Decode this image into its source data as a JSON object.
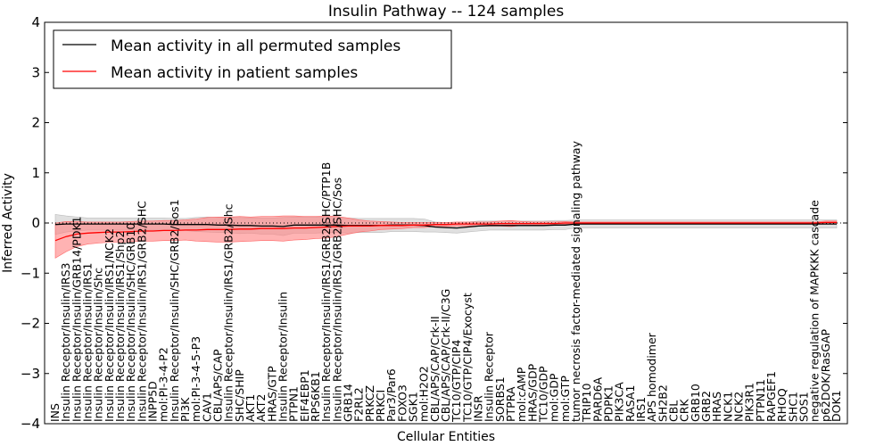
{
  "chart_data": {
    "type": "line",
    "title": "Insulin Pathway -- 124 samples",
    "xlabel": "Cellular Entities",
    "ylabel": "Inferred Activity",
    "ylim": [
      -4,
      4
    ],
    "yticks": [
      4,
      3,
      2,
      1,
      0,
      -1,
      -2,
      -3,
      -4
    ],
    "grid": false,
    "legend_position": "top-left",
    "categories": [
      "INS",
      "Insulin Receptor/Insulin/IRS3",
      "Insulin Receptor/Insulin/GRB14/PDK1",
      "Insulin Receptor/Insulin/IRS1",
      "Insulin Receptor/Insulin/Shc",
      "Insulin Receptor/Insulin/IRS1/NCK2",
      "Insulin Receptor/Insulin/IRS1/Shp2",
      "Insulin Receptor/Insulin/SHC/GRB10",
      "Insulin Receptor/Insulin/IRS1/GRB2/SHC",
      "INPP5D",
      "mol:PI-3-4-P2",
      "Insulin Receptor/Insulin/SHC/GRB2/Sos1",
      "PI3K",
      "mol:PI-3-4-5-P3",
      "CAV1",
      "CBL/APS/CAP",
      "Insulin Receptor/Insulin/IRS1/GRB2/Shc",
      "SHC/SHIP",
      "AKT1",
      "AKT2",
      "HRAS/GTP",
      "Insulin Receptor/Insulin",
      "PTPN1",
      "EIF4EBP1",
      "RPS6KB1",
      "Insulin Receptor/Insulin/IRS1/GRB2/SHC/PTP1B",
      "Insulin Receptor/Insulin/IRS1/GRB2/SHC/Sos",
      "GRB14",
      "F2RL2",
      "PRKCZ",
      "PRKCI",
      "Par3/Par6",
      "FOXO3",
      "SGK1",
      "mol:H2O2",
      "CBL/APS/CAP/Crk-II",
      "CBL/APS/CAP/Crk-II/C3G",
      "TC10/GTP/CIP4",
      "TC10/GTP/CIP4/Exocyst",
      "INSR",
      "Insulin Receptor",
      "SORBS1",
      "PTPRA",
      "mol:cAMP",
      "HRAS/GDP",
      "TC10/GDP",
      "mol:GDP",
      "mol:GTP",
      "tumor necrosis factor-mediated signaling pathway",
      "TRIP10",
      "PARD6A",
      "PDPK1",
      "PIK3CA",
      "RASA1",
      "IRS1",
      "APS homodimer",
      "SH2B2",
      "CBL",
      "CRK",
      "GRB10",
      "GRB2",
      "HRAS",
      "NCK1",
      "NCK2",
      "PIK3R1",
      "PTPN11",
      "RAPGEF1",
      "RHOQ",
      "SHC1",
      "SOS1",
      "negative regulation of MAPKKK cascade",
      "p62DOK/RasGAP",
      "DOK1"
    ],
    "series": [
      {
        "name": "Mean activity in all permuted samples",
        "color": "#000000",
        "values": [
          -0.03,
          -0.02,
          -0.02,
          -0.02,
          -0.02,
          -0.02,
          -0.02,
          -0.02,
          -0.02,
          -0.02,
          -0.02,
          -0.03,
          -0.03,
          -0.03,
          -0.03,
          -0.04,
          -0.04,
          -0.05,
          -0.05,
          -0.06,
          -0.06,
          -0.07,
          -0.04,
          -0.04,
          -0.04,
          -0.04,
          -0.04,
          -0.05,
          -0.05,
          -0.05,
          -0.05,
          -0.04,
          -0.04,
          -0.04,
          -0.05,
          -0.08,
          -0.09,
          -0.1,
          -0.08,
          -0.06,
          -0.05,
          -0.05,
          -0.05,
          -0.05,
          -0.05,
          -0.05,
          -0.04,
          -0.04,
          -0.02,
          -0.02,
          -0.02,
          -0.02,
          -0.02,
          -0.02,
          -0.02,
          -0.02,
          -0.02,
          -0.02,
          -0.02,
          -0.02,
          -0.02,
          -0.02,
          -0.02,
          -0.02,
          -0.02,
          -0.02,
          -0.02,
          -0.02,
          -0.02,
          -0.02,
          -0.02,
          -0.02,
          -0.02
        ],
        "band": [
          0.2,
          0.16,
          0.14,
          0.12,
          0.12,
          0.12,
          0.12,
          0.12,
          0.12,
          0.12,
          0.12,
          0.12,
          0.12,
          0.14,
          0.15,
          0.15,
          0.15,
          0.16,
          0.15,
          0.16,
          0.16,
          0.18,
          0.16,
          0.16,
          0.16,
          0.15,
          0.15,
          0.15,
          0.14,
          0.14,
          0.14,
          0.13,
          0.13,
          0.13,
          0.13,
          0.1,
          0.1,
          0.1,
          0.1,
          0.1,
          0.09,
          0.09,
          0.09,
          0.09,
          0.09,
          0.09,
          0.09,
          0.09,
          0.08,
          0.08,
          0.08,
          0.08,
          0.08,
          0.08,
          0.08,
          0.08,
          0.08,
          0.08,
          0.08,
          0.08,
          0.08,
          0.08,
          0.08,
          0.08,
          0.08,
          0.08,
          0.08,
          0.08,
          0.08,
          0.08,
          0.08,
          0.08,
          0.08
        ]
      },
      {
        "name": "Mean activity in patient samples",
        "color": "#ff0000",
        "values": [
          -0.35,
          -0.27,
          -0.22,
          -0.2,
          -0.19,
          -0.18,
          -0.18,
          -0.17,
          -0.16,
          -0.16,
          -0.15,
          -0.15,
          -0.14,
          -0.14,
          -0.13,
          -0.13,
          -0.13,
          -0.12,
          -0.12,
          -0.11,
          -0.11,
          -0.11,
          -0.1,
          -0.1,
          -0.09,
          -0.08,
          -0.07,
          -0.06,
          -0.06,
          -0.06,
          -0.05,
          -0.05,
          -0.05,
          -0.04,
          -0.04,
          -0.03,
          -0.03,
          -0.02,
          -0.02,
          -0.02,
          -0.02,
          -0.01,
          -0.01,
          -0.01,
          -0.01,
          -0.01,
          -0.01,
          0.0,
          0.0,
          0.0,
          0.0,
          0.0,
          0.0,
          0.0,
          0.0,
          0.0,
          0.0,
          0.0,
          0.0,
          0.0,
          0.0,
          0.0,
          0.0,
          0.0,
          0.0,
          0.0,
          0.0,
          0.0,
          0.0,
          0.0,
          0.0,
          0.01,
          0.01
        ],
        "band": [
          0.35,
          0.3,
          0.25,
          0.22,
          0.21,
          0.2,
          0.2,
          0.2,
          0.2,
          0.2,
          0.2,
          0.2,
          0.2,
          0.22,
          0.24,
          0.25,
          0.25,
          0.25,
          0.24,
          0.24,
          0.24,
          0.25,
          0.24,
          0.23,
          0.22,
          0.22,
          0.2,
          0.16,
          0.12,
          0.1,
          0.08,
          0.07,
          0.06,
          0.05,
          0.05,
          0.04,
          0.04,
          0.04,
          0.04,
          0.04,
          0.04,
          0.05,
          0.06,
          0.04,
          0.03,
          0.03,
          0.03,
          0.03,
          0.02,
          0.02,
          0.02,
          0.02,
          0.02,
          0.02,
          0.02,
          0.02,
          0.02,
          0.02,
          0.02,
          0.02,
          0.02,
          0.02,
          0.02,
          0.02,
          0.02,
          0.02,
          0.02,
          0.02,
          0.02,
          0.02,
          0.02,
          0.03,
          0.03
        ]
      }
    ]
  }
}
